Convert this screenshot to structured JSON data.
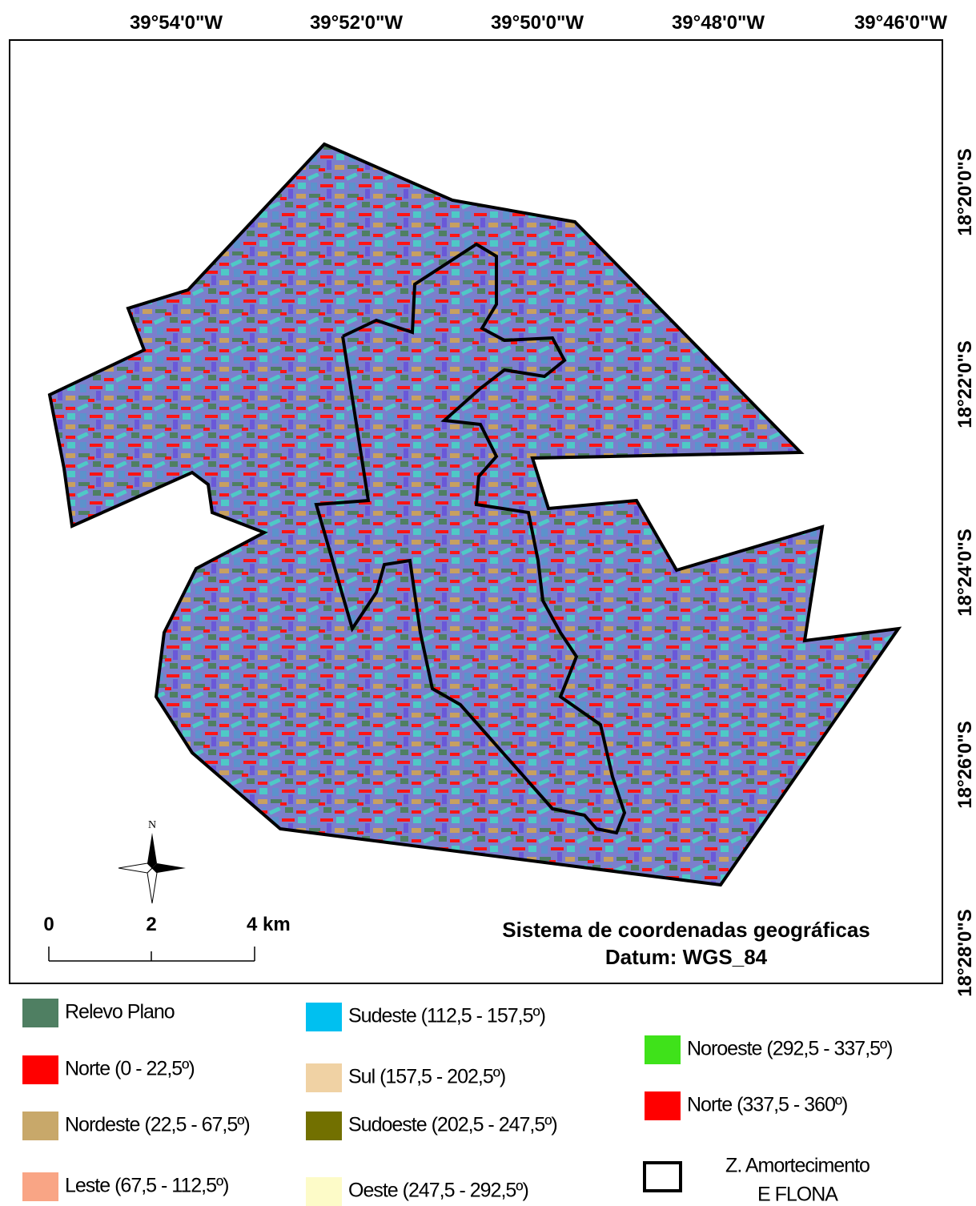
{
  "map": {
    "top_labels": [
      "39°54'0\"W",
      "39°52'0\"W",
      "39°50'0\"W",
      "39°48'0\"W",
      "39°46'0\"W"
    ],
    "right_labels": [
      "18°20'0\"S",
      "18°22'0\"S",
      "18°24'0\"S",
      "18°26'0\"S",
      "18°28'0\"S"
    ],
    "north_label": "N",
    "scale_bar": {
      "labels": [
        "0",
        "2",
        "4 km"
      ]
    },
    "coordinate_system": [
      "Sistema de coordenadas geográficas",
      "Datum: WGS_84"
    ]
  },
  "legend": {
    "items": [
      {
        "label": "Relevo Plano",
        "color": "#4f7f62"
      },
      {
        "label": "Norte (0 - 22,5º)",
        "color": "#ff0000"
      },
      {
        "label": "Nordeste (22,5 - 67,5º)",
        "color": "#c8a86a"
      },
      {
        "label": "Leste (67,5 - 112,5º)",
        "color": "#f9a585"
      },
      {
        "label": "Sudeste (112,5 - 157,5º)",
        "color": "#00c0f0"
      },
      {
        "label": "Sul (157,5 - 202,5º)",
        "color": "#f0d2a4"
      },
      {
        "label": "Sudoeste (202,5 - 247,5º)",
        "color": "#727000"
      },
      {
        "label": "Oeste (247,5 - 292,5º)",
        "color": "#fdfbc8"
      },
      {
        "label": "Noroeste (292,5 - 337,5º)",
        "color": "#3fe21a"
      },
      {
        "label": "Norte (337,5 - 360º)",
        "color": "#ff0000"
      }
    ],
    "boundary": {
      "label_lines": [
        "Z. Amortecimento",
        "E FLONA"
      ]
    }
  }
}
